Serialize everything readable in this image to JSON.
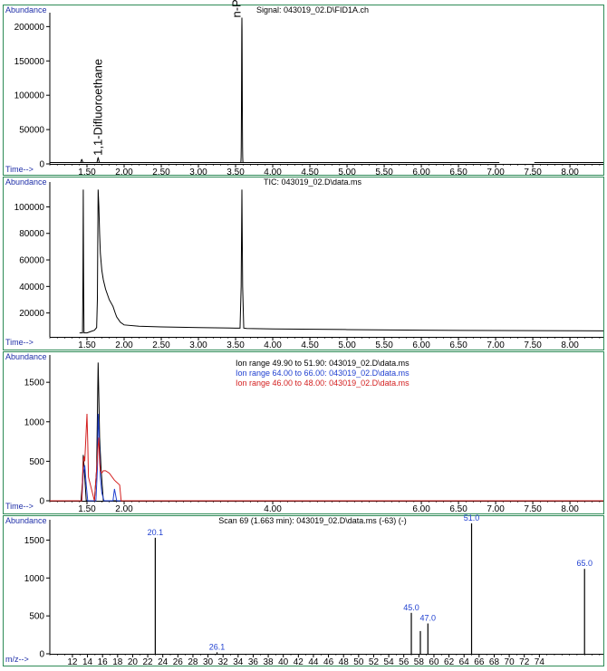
{
  "colors": {
    "frame": "#2e8b57",
    "axis_label": "#1f2fa8",
    "trace": "#000000",
    "black": "#000000",
    "blue": "#1f3fd0",
    "red": "#d42020"
  },
  "chart_data": [
    {
      "type": "line",
      "name": "fid",
      "title": "Signal: 043019_02.D\\FID1A.ch",
      "ylabel": "Abundance",
      "xlabel": "Time-->",
      "xlim": [
        1.0,
        8.45
      ],
      "ylim": [
        0,
        215000
      ],
      "x_ticks": [
        "1.50",
        "2.00",
        "2.50",
        "3.00",
        "3.50",
        "4.00",
        "4.50",
        "5.00",
        "5.50",
        "6.00",
        "6.50",
        "7.00",
        "7.50",
        "8.00"
      ],
      "x_tick_values": [
        1.5,
        2.0,
        2.5,
        3.0,
        3.5,
        4.0,
        4.5,
        5.0,
        5.5,
        6.0,
        6.5,
        7.0,
        7.5,
        8.0
      ],
      "y_ticks": [
        "0",
        "50000",
        "100000",
        "150000",
        "200000"
      ],
      "y_tick_values": [
        0,
        50000,
        100000,
        150000,
        200000
      ],
      "baseline_segments": [
        [
          1.0,
          7.05
        ],
        [
          7.52,
          8.45
        ]
      ],
      "peaks": [
        {
          "x": 1.43,
          "height": 4500,
          "width": 0.02
        },
        {
          "x": 1.65,
          "height": 7000,
          "width": 0.02
        },
        {
          "x": 3.585,
          "height": 211000,
          "width": 0.012
        }
      ],
      "annotations": [
        {
          "text": "1,1-Difluoroethane",
          "x": 1.65,
          "y": 12000
        },
        {
          "text": "n-Propanol",
          "x": 3.52,
          "y": 213000
        }
      ]
    },
    {
      "type": "line",
      "name": "tic",
      "title": "TIC: 043019_02.D\\data.ms",
      "ylabel": "Abundance",
      "xlabel": "Time-->",
      "xlim": [
        1.0,
        8.45
      ],
      "ylim": [
        2000,
        116000
      ],
      "x_ticks": [
        "1.50",
        "2.00",
        "2.50",
        "3.00",
        "3.50",
        "4.00",
        "4.50",
        "5.00",
        "5.50",
        "6.00",
        "6.50",
        "7.00",
        "7.50",
        "8.00"
      ],
      "x_tick_values": [
        1.5,
        2.0,
        2.5,
        3.0,
        3.5,
        4.0,
        4.5,
        5.0,
        5.5,
        6.0,
        6.5,
        7.0,
        7.5,
        8.0
      ],
      "y_ticks": [
        "20000",
        "40000",
        "60000",
        "80000",
        "100000"
      ],
      "y_tick_values": [
        20000,
        40000,
        60000,
        80000,
        100000
      ],
      "x": [
        1.4,
        1.44,
        1.445,
        1.45,
        1.455,
        1.46,
        1.5,
        1.55,
        1.6,
        1.63,
        1.64,
        1.65,
        1.66,
        1.67,
        1.68,
        1.7,
        1.72,
        1.75,
        1.8,
        1.85,
        1.88,
        1.9,
        1.95,
        2.0,
        2.2,
        2.5,
        3.0,
        3.5,
        3.56,
        3.575,
        3.585,
        3.595,
        3.61,
        3.65,
        4.0,
        5.0,
        6.0,
        7.0,
        8.0,
        8.45
      ],
      "y": [
        5000,
        5000,
        40000,
        113000,
        40000,
        5000,
        5000,
        6000,
        7000,
        9000,
        30000,
        113000,
        100000,
        80000,
        65000,
        52000,
        45000,
        38000,
        30000,
        25000,
        20000,
        17000,
        13000,
        11000,
        10000,
        9500,
        9000,
        8600,
        8600,
        40000,
        113000,
        40000,
        8600,
        8300,
        8000,
        7500,
        7000,
        6800,
        6600,
        6500
      ]
    },
    {
      "type": "line",
      "name": "ion",
      "title": "",
      "ylabel": "Abundance",
      "xlabel": "Time-->",
      "xlim": [
        1.0,
        8.45
      ],
      "ylim": [
        0,
        1800
      ],
      "x_ticks": [
        "1.50",
        "2.00",
        "4.00",
        "6.00",
        "6.50",
        "7.00",
        "7.50",
        "8.00"
      ],
      "x_tick_values": [
        1.5,
        2.0,
        4.0,
        6.0,
        6.5,
        7.0,
        7.5,
        8.0
      ],
      "y_ticks": [
        "0",
        "500",
        "1000",
        "1500"
      ],
      "y_tick_values": [
        0,
        500,
        1000,
        1500
      ],
      "legend_lines": [
        {
          "label": "Ion range  49.90 to  51.90: 043019_02.D\\data.ms",
          "color": "#000000"
        },
        {
          "label": "Ion range  64.00 to  66.00: 043019_02.D\\data.ms",
          "color": "#1f3fd0"
        },
        {
          "label": "Ion range  46.00 to  48.00: 043019_02.D\\data.ms",
          "color": "#d42020"
        }
      ],
      "series": [
        {
          "color": "#000000",
          "x": [
            1.0,
            1.42,
            1.44,
            1.45,
            1.46,
            1.47,
            1.49,
            1.6,
            1.63,
            1.65,
            1.66,
            1.67,
            1.68,
            1.69,
            1.72,
            1.8,
            8.45
          ],
          "y": [
            0,
            0,
            250,
            580,
            450,
            300,
            0,
            0,
            400,
            1750,
            1300,
            800,
            600,
            400,
            0,
            0,
            0
          ]
        },
        {
          "color": "#1f3fd0",
          "x": [
            1.0,
            1.43,
            1.45,
            1.47,
            1.49,
            1.51,
            1.62,
            1.64,
            1.65,
            1.66,
            1.68,
            1.7,
            1.73,
            1.85,
            1.87,
            1.9,
            8.45
          ],
          "y": [
            0,
            0,
            350,
            450,
            200,
            0,
            0,
            400,
            1100,
            900,
            300,
            100,
            0,
            0,
            150,
            0,
            0
          ]
        },
        {
          "color": "#d42020",
          "x": [
            1.0,
            1.43,
            1.45,
            1.46,
            1.47,
            1.48,
            1.5,
            1.51,
            1.52,
            1.6,
            1.63,
            1.65,
            1.66,
            1.67,
            1.68,
            1.7,
            1.72,
            1.75,
            1.8,
            1.87,
            1.94,
            1.96,
            8.45
          ],
          "y": [
            0,
            0,
            500,
            560,
            500,
            700,
            1100,
            750,
            300,
            0,
            400,
            700,
            800,
            480,
            380,
            350,
            380,
            380,
            350,
            260,
            200,
            0,
            0
          ]
        }
      ]
    },
    {
      "type": "bar",
      "name": "ms",
      "title": "Scan 69 (1.663 min): 043019_02.D\\data.ms (-63) (-)",
      "ylabel": "Abundance",
      "xlabel": "m/z-->",
      "xlim": [
        9.0,
        82.5
      ],
      "ylim": [
        0,
        1720
      ],
      "x_ticks": [
        "12",
        "14",
        "16",
        "18",
        "20",
        "22",
        "24",
        "26",
        "28",
        "30",
        "32",
        "34",
        "36",
        "38",
        "40",
        "42",
        "44",
        "46",
        "48",
        "50",
        "52",
        "54",
        "56",
        "58",
        "60",
        "62",
        "64",
        "66",
        "68",
        "70",
        "72",
        "74"
      ],
      "x_tick_values": [
        12,
        14,
        16,
        18,
        20,
        22,
        24,
        26,
        28,
        30,
        32,
        34,
        36,
        38,
        40,
        42,
        44,
        46,
        48,
        50,
        52,
        54,
        56,
        58,
        60,
        62,
        64,
        66,
        68,
        70,
        72,
        74
      ],
      "y_ticks": [
        "0",
        "500",
        "1000",
        "1500"
      ],
      "y_tick_values": [
        0,
        500,
        1000,
        1500
      ],
      "bars": [
        {
          "x": 23.0,
          "y": 1530,
          "label": "20.1"
        },
        {
          "x": 31.2,
          "y": 20,
          "label": "26.1"
        },
        {
          "x": 57.0,
          "y": 540,
          "label": "45.0"
        },
        {
          "x": 58.2,
          "y": 300,
          "label": ""
        },
        {
          "x": 59.2,
          "y": 400,
          "label": "47.0"
        },
        {
          "x": 65.0,
          "y": 1720,
          "label": "51.0"
        },
        {
          "x": 80.0,
          "y": 1120,
          "label": "65.0"
        }
      ]
    }
  ]
}
